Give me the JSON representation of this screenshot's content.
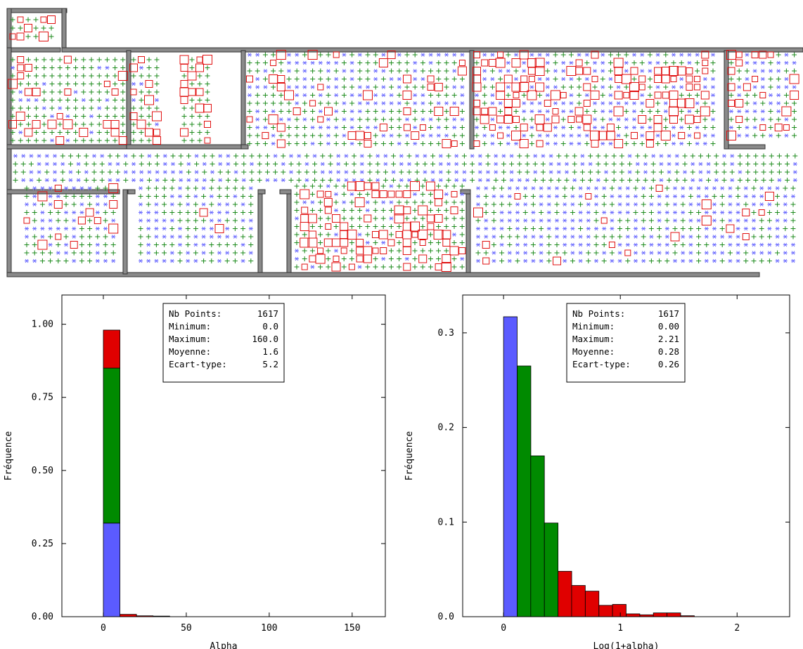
{
  "colors": {
    "wall": "#8a8a8a",
    "blue": "#5b5bff",
    "green": "#008a00",
    "red": "#e00000",
    "cross_green": "#1b8a1b",
    "star_blue": "#6a6aff",
    "square_red": "#e01010"
  },
  "floorplan": {
    "legend_markers": [
      "star-blue",
      "cross-green",
      "square-red"
    ]
  },
  "charts": [
    {
      "type": "bar",
      "xlabel": "Alpha",
      "ylabel": "Fréquence",
      "xlim": [
        -25,
        170
      ],
      "ylim": [
        0,
        1.1
      ],
      "xticks": [
        0,
        50,
        100,
        150
      ],
      "xtick_labels": [
        "0",
        "50",
        "100",
        "150"
      ],
      "yticks": [
        0,
        0.25,
        0.5,
        0.75,
        1.0
      ],
      "ytick_labels": [
        "0.00",
        "0.25",
        "0.50",
        "0.75",
        "1.00"
      ],
      "bin_width": 10,
      "bins": [
        {
          "x": 0,
          "segments": [
            {
              "color": "blue",
              "value": 0.32
            },
            {
              "color": "green",
              "value": 0.53
            },
            {
              "color": "red",
              "value": 0.13
            }
          ]
        },
        {
          "x": 10,
          "segments": [
            {
              "color": "red",
              "value": 0.008
            }
          ]
        },
        {
          "x": 20,
          "segments": [
            {
              "color": "red",
              "value": 0.003
            }
          ]
        },
        {
          "x": 30,
          "segments": [
            {
              "color": "red",
              "value": 0.002
            }
          ]
        }
      ],
      "stats": {
        "labels": [
          "Nb Points:",
          "Minimum:",
          "Maximum:",
          "Moyenne:",
          "Ecart-type:"
        ],
        "values": [
          "1617",
          "0.0",
          "160.0",
          "1.6",
          "5.2"
        ]
      }
    },
    {
      "type": "bar",
      "xlabel": "Log(1+alpha)",
      "ylabel": "Fréquence",
      "xlim": [
        -0.35,
        2.45
      ],
      "ylim": [
        0,
        0.34
      ],
      "xticks": [
        0,
        1,
        2
      ],
      "xtick_labels": [
        "0",
        "1",
        "2"
      ],
      "yticks": [
        0,
        0.1,
        0.2,
        0.3
      ],
      "ytick_labels": [
        "0.0",
        "0.1",
        "0.2",
        "0.3"
      ],
      "bin_width": 0.1167,
      "bins": [
        {
          "x": 0.0,
          "color": "blue",
          "value": 0.317
        },
        {
          "x": 0.117,
          "color": "green",
          "value": 0.265
        },
        {
          "x": 0.233,
          "color": "green",
          "value": 0.17
        },
        {
          "x": 0.35,
          "color": "green",
          "value": 0.099
        },
        {
          "x": 0.467,
          "color": "red",
          "value": 0.048
        },
        {
          "x": 0.583,
          "color": "red",
          "value": 0.033
        },
        {
          "x": 0.7,
          "color": "red",
          "value": 0.027
        },
        {
          "x": 0.817,
          "color": "red",
          "value": 0.012
        },
        {
          "x": 0.933,
          "color": "red",
          "value": 0.013
        },
        {
          "x": 1.05,
          "color": "red",
          "value": 0.003
        },
        {
          "x": 1.167,
          "color": "red",
          "value": 0.002
        },
        {
          "x": 1.283,
          "color": "red",
          "value": 0.004
        },
        {
          "x": 1.4,
          "color": "red",
          "value": 0.004
        },
        {
          "x": 1.517,
          "color": "red",
          "value": 0.001
        }
      ],
      "stats": {
        "labels": [
          "Nb Points:",
          "Minimum:",
          "Maximum:",
          "Moyenne:",
          "Ecart-type:"
        ],
        "values": [
          "1617",
          "0.00",
          "2.21",
          "0.28",
          "0.26"
        ]
      }
    }
  ]
}
